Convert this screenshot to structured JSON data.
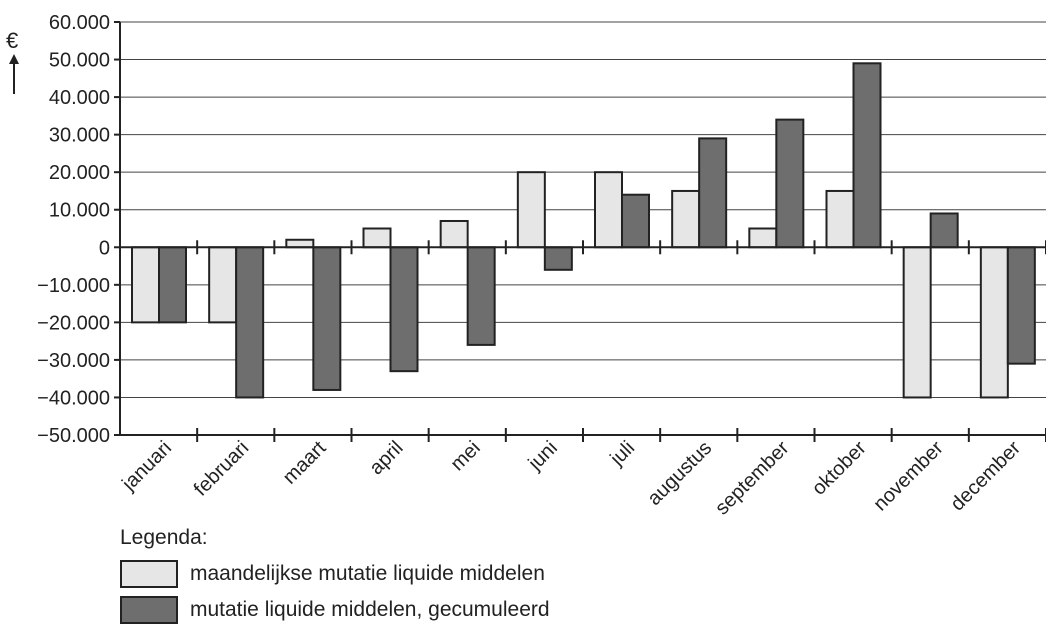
{
  "chart_data": {
    "type": "bar",
    "title": "",
    "xlabel": "",
    "ylabel": "€",
    "ylim": [
      -50000,
      60000
    ],
    "yticks": [
      -50000,
      -40000,
      -30000,
      -20000,
      -10000,
      0,
      10000,
      20000,
      30000,
      40000,
      50000,
      60000
    ],
    "ytick_labels": [
      "−50.000",
      "−40.000",
      "−30.000",
      "−20.000",
      "−10.000",
      "0",
      "10.000",
      "20.000",
      "30.000",
      "40.000",
      "50.000",
      "60.000"
    ],
    "grid": true,
    "categories": [
      "januari",
      "februari",
      "maart",
      "april",
      "mei",
      "juni",
      "juli",
      "augustus",
      "september",
      "oktober",
      "november",
      "december"
    ],
    "series": [
      {
        "name": "maandelijkse mutatie liquide middelen",
        "color": "#e6e6e6",
        "values": [
          -20000,
          -20000,
          2000,
          5000,
          7000,
          20000,
          20000,
          15000,
          5000,
          15000,
          -40000,
          -40000
        ]
      },
      {
        "name": "mutatie liquide middelen, gecumuleerd",
        "color": "#6e6e6e",
        "values": [
          -20000,
          -40000,
          -38000,
          -33000,
          -26000,
          -6000,
          14000,
          29000,
          34000,
          49000,
          9000,
          -31000
        ]
      }
    ],
    "legend": {
      "title": "Legenda:",
      "placement": "bottom-left"
    }
  }
}
